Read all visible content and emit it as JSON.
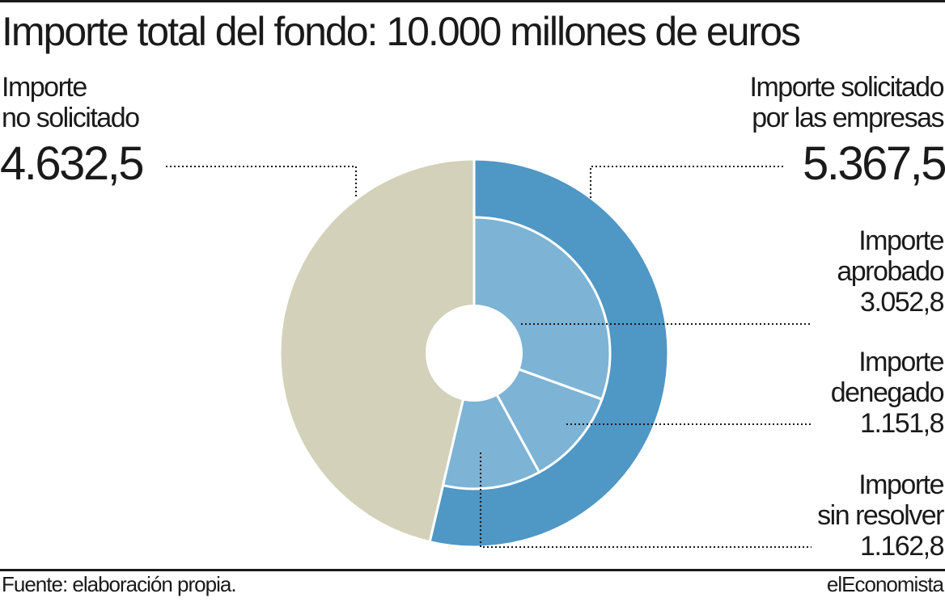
{
  "title": "Importe total del fondo: 10.000 millones de euros",
  "labels": {
    "no_solicitado_line1": "Importe",
    "no_solicitado_line2": "no solicitado",
    "no_solicitado_value": "4.632,5",
    "solicitado_line1": "Importe solicitado",
    "solicitado_line2": "por las empresas",
    "solicitado_value": "5.367,5",
    "aprobado_line1": "Importe",
    "aprobado_line2": "aprobado",
    "aprobado_value": "3.052,8",
    "denegado_line1": "Importe",
    "denegado_line2": "denegado",
    "denegado_value": "1.151,8",
    "sin_resolver_line1": "Importe",
    "sin_resolver_line2": "sin resolver",
    "sin_resolver_value": "1.162,8"
  },
  "footer": {
    "source": "Fuente: elaboración propia.",
    "brand": "elEconomista"
  },
  "chart_data": {
    "type": "pie",
    "title": "Importe total del fondo: 10.000 millones de euros",
    "total": 10000,
    "outer_ring": [
      {
        "label": "Importe solicitado por las empresas",
        "value": 5367.5,
        "color": "#4f97c5"
      },
      {
        "label": "Importe no solicitado",
        "value": 4632.5,
        "color": "#d3d1b9"
      }
    ],
    "inner_ring": [
      {
        "label": "Importe aprobado",
        "value": 3052.8,
        "color": "#7db3d5"
      },
      {
        "label": "Importe denegado",
        "value": 1151.8,
        "color": "#7db3d5"
      },
      {
        "label": "Importe sin resolver",
        "value": 1162.8,
        "color": "#7db3d5"
      }
    ]
  }
}
